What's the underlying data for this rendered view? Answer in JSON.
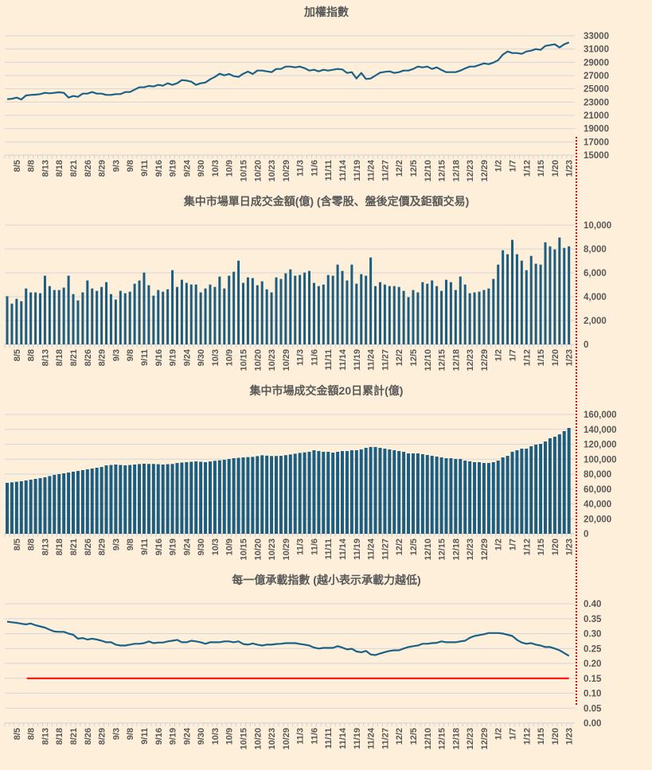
{
  "chart_data": [
    {
      "type": "line",
      "title": "加權指數",
      "color": "#1b6289",
      "ylim": [
        15000,
        33000
      ],
      "ytick_step": 2000,
      "ytick_labels": [
        "15000",
        "17000",
        "19000",
        "21000",
        "23000",
        "25000",
        "27000",
        "29000",
        "31000",
        "33000"
      ],
      "tick_start_index": 2,
      "tick_every": 3,
      "x_tick_labels": [
        "8/5",
        "8/8",
        "8/13",
        "8/18",
        "8/21",
        "8/26",
        "8/29",
        "9/3",
        "9/8",
        "9/11",
        "9/16",
        "9/19",
        "9/24",
        "9/30",
        "10/3",
        "10/9",
        "10/15",
        "10/20",
        "10/23",
        "10/29",
        "11/3",
        "11/6",
        "11/11",
        "11/14",
        "11/19",
        "11/24",
        "11/27",
        "12/2",
        "12/5",
        "12/10",
        "12/15",
        "12/18",
        "12/23",
        "12/29",
        "1/2",
        "1/7",
        "1/12",
        "1/15",
        "1/20",
        "1/23"
      ],
      "values": [
        23440,
        23500,
        23680,
        23400,
        24000,
        24080,
        24120,
        24200,
        24400,
        24320,
        24400,
        24480,
        24400,
        23680,
        23920,
        23800,
        24280,
        24280,
        24520,
        24280,
        24280,
        24080,
        24080,
        24200,
        24200,
        24520,
        24520,
        24880,
        25240,
        25240,
        25440,
        25360,
        25600,
        25480,
        25840,
        25600,
        25840,
        26320,
        26240,
        26080,
        25600,
        25840,
        25960,
        26440,
        26800,
        27280,
        27040,
        27240,
        26920,
        26800,
        27280,
        27600,
        27240,
        27760,
        27760,
        27640,
        27520,
        28000,
        28000,
        28360,
        28360,
        28240,
        28360,
        28120,
        27760,
        27880,
        27640,
        27880,
        27760,
        27880,
        28000,
        27920,
        27400,
        27520,
        26560,
        27400,
        26480,
        26560,
        27000,
        27440,
        27560,
        27640,
        27400,
        27520,
        27760,
        27760,
        28000,
        28360,
        28240,
        28360,
        28000,
        28240,
        27840,
        27520,
        27520,
        27520,
        27760,
        28080,
        28360,
        28360,
        28600,
        28840,
        28720,
        28960,
        29320,
        30160,
        30640,
        30400,
        30400,
        30280,
        30640,
        30760,
        31000,
        30880,
        31480,
        31600,
        31720,
        31240,
        31720,
        32000
      ]
    },
    {
      "type": "bar",
      "title": "集中市場單日成交金額(億) (含零股、盤後定價及鉅額交易)",
      "color": "#1b5e82",
      "ylim": [
        0,
        10000
      ],
      "ytick_step": 2000,
      "ytick_labels": [
        "0",
        "2,000",
        "4,000",
        "6,000",
        "8,000",
        "10,000"
      ],
      "tick_start_index": 2,
      "tick_every": 3,
      "x_tick_labels": [
        "8/5",
        "8/8",
        "8/13",
        "8/18",
        "8/21",
        "8/26",
        "8/29",
        "9/3",
        "9/8",
        "9/11",
        "9/16",
        "9/19",
        "9/24",
        "9/30",
        "10/3",
        "10/9",
        "10/15",
        "10/20",
        "10/23",
        "10/29",
        "11/3",
        "11/6",
        "11/11",
        "11/14",
        "11/19",
        "11/24",
        "11/27",
        "12/2",
        "12/5",
        "12/10",
        "12/15",
        "12/18",
        "12/23",
        "12/29",
        "1/2",
        "1/7",
        "1/12",
        "1/15",
        "1/20",
        "1/23"
      ],
      "values": [
        4040,
        3420,
        3820,
        3620,
        4690,
        4360,
        4360,
        4290,
        5760,
        4890,
        4560,
        4560,
        4760,
        5760,
        4220,
        3690,
        4360,
        5360,
        4690,
        4490,
        4820,
        5220,
        4220,
        3760,
        4490,
        4290,
        4420,
        5090,
        5360,
        6020,
        4960,
        4090,
        4560,
        4420,
        4620,
        6220,
        4820,
        5420,
        5160,
        5020,
        5020,
        4360,
        4690,
        5020,
        4820,
        5690,
        4690,
        5760,
        6090,
        7020,
        5160,
        5620,
        5560,
        4960,
        5290,
        4620,
        4360,
        5620,
        5490,
        5960,
        6290,
        5760,
        5820,
        6020,
        6160,
        5160,
        4890,
        5020,
        5820,
        5760,
        6690,
        6160,
        5360,
        6690,
        5090,
        5890,
        5760,
        7290,
        4890,
        5220,
        5020,
        4890,
        4890,
        4820,
        4490,
        3960,
        4560,
        4360,
        5220,
        5090,
        5360,
        4890,
        4490,
        5420,
        5220,
        4560,
        5690,
        5020,
        4290,
        4360,
        4420,
        4560,
        4690,
        5490,
        6690,
        7890,
        7560,
        8760,
        7560,
        7020,
        6220,
        7420,
        6760,
        6690,
        8560,
        8220,
        7960,
        8960,
        8090,
        8220
      ]
    },
    {
      "type": "bar",
      "title": "集中市場成交金額20日累計(億)",
      "color": "#1b5e82",
      "ylim": [
        0,
        160000
      ],
      "ytick_step": 20000,
      "ytick_labels": [
        "0",
        "20,000",
        "40,000",
        "60,000",
        "80,000",
        "100,000",
        "120,000",
        "140,000",
        "160,000"
      ],
      "tick_start_index": 2,
      "tick_every": 3,
      "x_tick_labels": [
        "8/5",
        "8/8",
        "8/13",
        "8/18",
        "8/21",
        "8/26",
        "8/29",
        "9/3",
        "9/8",
        "9/11",
        "9/16",
        "9/19",
        "9/24",
        "9/30",
        "10/3",
        "10/9",
        "10/15",
        "10/20",
        "10/23",
        "10/29",
        "11/3",
        "11/6",
        "11/11",
        "11/14",
        "11/19",
        "11/24",
        "11/27",
        "12/2",
        "12/5",
        "12/10",
        "12/15",
        "12/18",
        "12/23",
        "12/29",
        "1/2",
        "1/7",
        "1/12",
        "1/15",
        "1/20",
        "1/23"
      ],
      "values": [
        68300,
        69000,
        69700,
        70400,
        71400,
        72500,
        73600,
        74600,
        75700,
        77300,
        78900,
        80000,
        81000,
        82100,
        83200,
        84200,
        85300,
        86400,
        87500,
        88500,
        89600,
        91700,
        92200,
        92800,
        92200,
        91700,
        92200,
        92800,
        93400,
        93900,
        93600,
        93600,
        93200,
        92800,
        93300,
        93600,
        94900,
        95500,
        96000,
        96500,
        97000,
        96500,
        96000,
        96900,
        97800,
        98500,
        99200,
        100200,
        101300,
        101800,
        102400,
        102800,
        103100,
        104100,
        105200,
        104700,
        104200,
        104300,
        104500,
        105400,
        106300,
        107300,
        108400,
        109100,
        109900,
        112000,
        110900,
        109900,
        109900,
        108800,
        109900,
        110900,
        110900,
        112000,
        112000,
        113100,
        115200,
        116300,
        116300,
        115200,
        114100,
        113100,
        112000,
        110900,
        109900,
        107700,
        107700,
        107700,
        106700,
        105600,
        104500,
        103500,
        102400,
        101300,
        101300,
        100300,
        100300,
        98100,
        97100,
        96000,
        96000,
        94900,
        94900,
        96000,
        98100,
        102400,
        104500,
        109900,
        112000,
        114100,
        114100,
        117300,
        119500,
        120500,
        123700,
        128000,
        130100,
        133300,
        137600,
        141900
      ]
    },
    {
      "type": "line",
      "title": "每一億承載指數 (越小表示承載力越低)",
      "color": "#1b6289",
      "ylim": [
        0,
        0.4
      ],
      "ytick_step": 0.05,
      "ytick_labels": [
        "0.00",
        "0.05",
        "0.10",
        "0.15",
        "0.20",
        "0.25",
        "0.30",
        "0.35",
        "0.40"
      ],
      "reference_line": {
        "value": 0.15,
        "from_index": 4,
        "color": "#ff0000"
      },
      "tick_start_index": 2,
      "tick_every": 3,
      "x_tick_labels": [
        "8/5",
        "8/8",
        "8/13",
        "8/18",
        "8/21",
        "8/26",
        "8/29",
        "9/3",
        "9/8",
        "9/11",
        "9/16",
        "9/19",
        "9/24",
        "9/30",
        "10/3",
        "10/9",
        "10/15",
        "10/20",
        "10/23",
        "10/29",
        "11/3",
        "11/6",
        "11/11",
        "11/14",
        "11/19",
        "11/24",
        "11/27",
        "12/2",
        "12/5",
        "12/10",
        "12/15",
        "12/18",
        "12/23",
        "12/29",
        "1/2",
        "1/7",
        "1/12",
        "1/15",
        "1/20",
        "1/23"
      ],
      "values": [
        0.34,
        0.338,
        0.336,
        0.333,
        0.331,
        0.334,
        0.328,
        0.324,
        0.32,
        0.313,
        0.307,
        0.306,
        0.306,
        0.3,
        0.296,
        0.283,
        0.285,
        0.28,
        0.283,
        0.28,
        0.276,
        0.271,
        0.271,
        0.263,
        0.26,
        0.26,
        0.263,
        0.266,
        0.266,
        0.268,
        0.274,
        0.268,
        0.27,
        0.27,
        0.274,
        0.276,
        0.279,
        0.271,
        0.271,
        0.276,
        0.274,
        0.271,
        0.266,
        0.271,
        0.271,
        0.271,
        0.274,
        0.274,
        0.271,
        0.274,
        0.265,
        0.263,
        0.267,
        0.263,
        0.26,
        0.263,
        0.263,
        0.265,
        0.266,
        0.268,
        0.268,
        0.268,
        0.265,
        0.263,
        0.26,
        0.253,
        0.25,
        0.252,
        0.252,
        0.252,
        0.258,
        0.253,
        0.247,
        0.249,
        0.24,
        0.237,
        0.242,
        0.23,
        0.228,
        0.233,
        0.238,
        0.242,
        0.244,
        0.244,
        0.25,
        0.255,
        0.258,
        0.26,
        0.266,
        0.266,
        0.268,
        0.269,
        0.274,
        0.271,
        0.271,
        0.271,
        0.274,
        0.276,
        0.286,
        0.292,
        0.295,
        0.298,
        0.302,
        0.302,
        0.302,
        0.3,
        0.296,
        0.292,
        0.279,
        0.27,
        0.266,
        0.268,
        0.263,
        0.26,
        0.255,
        0.255,
        0.25,
        0.244,
        0.235,
        0.225
      ]
    }
  ],
  "annotation": {
    "marker_color": "#ff0000"
  }
}
